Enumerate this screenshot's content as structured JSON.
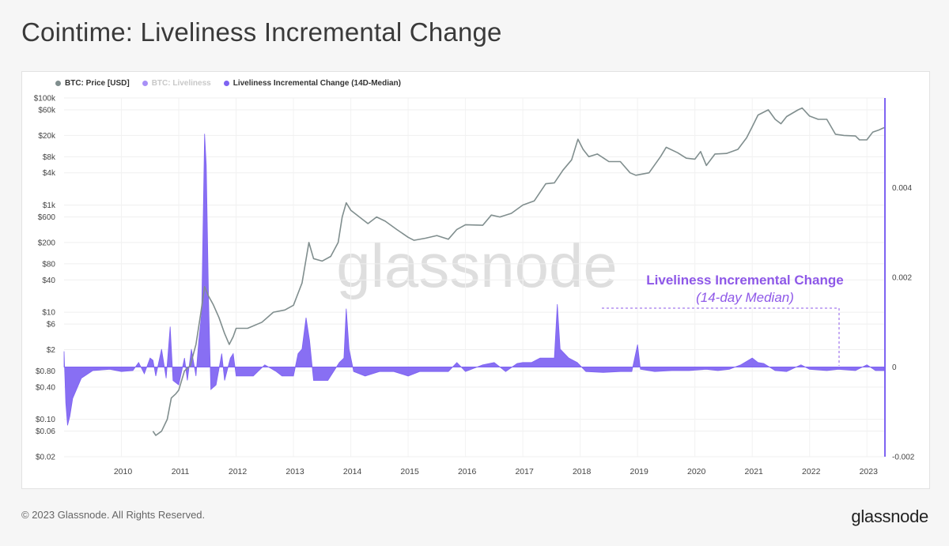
{
  "page": {
    "title": "Cointime: Liveliness Incremental Change",
    "footer": "© 2023 Glassnode. All Rights Reserved.",
    "brand": "glassnode"
  },
  "colors": {
    "price": "#808e8e",
    "liveliness": "#8a6cf0",
    "change": "#7e63f2",
    "annotation": "#8e58e8"
  },
  "chart_data": {
    "type": "line",
    "legend": [
      {
        "label": "BTC: Price [USD]",
        "color": "#808e8e",
        "faded": false
      },
      {
        "label": "BTC: Liveliness",
        "color": "#a890f7",
        "faded": true
      },
      {
        "label": "Liveliness Incremental Change (14D-Median)",
        "color": "#7e63f2",
        "faded": false
      }
    ],
    "watermark": "glassnode",
    "annotation": {
      "title": "Liveliness Incremental Change",
      "subtitle": "(14-day Median)"
    },
    "x_axis": {
      "ticks": [
        "2010",
        "2011",
        "2012",
        "2013",
        "2014",
        "2015",
        "2016",
        "2017",
        "2018",
        "2019",
        "2020",
        "2021",
        "2022",
        "2023"
      ],
      "range": [
        2009.0,
        2023.3
      ]
    },
    "y_left": {
      "scale": "log",
      "ticks": [
        "$100k",
        "$60k",
        "$20k",
        "$8k",
        "$4k",
        "$1k",
        "$600",
        "$200",
        "$80",
        "$40",
        "$10",
        "$6",
        "$2",
        "$0.80",
        "$0.40",
        "$0.10",
        "$0.06",
        "$0.02"
      ],
      "tick_values": [
        100000,
        60000,
        20000,
        8000,
        4000,
        1000,
        600,
        200,
        80,
        40,
        10,
        6,
        2,
        0.8,
        0.4,
        0.1,
        0.06,
        0.02
      ],
      "range": [
        0.02,
        100000
      ]
    },
    "y_right": {
      "scale": "linear",
      "ticks": [
        "0.004",
        "0.002",
        "0",
        "-0.002"
      ],
      "tick_values": [
        0.004,
        0.002,
        0,
        -0.002
      ],
      "range": [
        -0.002,
        0.006
      ]
    },
    "series": [
      {
        "name": "BTC: Price [USD]",
        "axis": "left",
        "points": [
          [
            2010.55,
            0.06
          ],
          [
            2010.6,
            0.05
          ],
          [
            2010.7,
            0.06
          ],
          [
            2010.8,
            0.1
          ],
          [
            2010.87,
            0.25
          ],
          [
            2010.95,
            0.3
          ],
          [
            2011.0,
            0.35
          ],
          [
            2011.1,
            0.8
          ],
          [
            2011.2,
            1.0
          ],
          [
            2011.3,
            2.5
          ],
          [
            2011.38,
            9.0
          ],
          [
            2011.45,
            30.0
          ],
          [
            2011.52,
            20.0
          ],
          [
            2011.6,
            14.0
          ],
          [
            2011.7,
            8.0
          ],
          [
            2011.8,
            4.0
          ],
          [
            2011.88,
            2.5
          ],
          [
            2011.95,
            3.5
          ],
          [
            2012.0,
            5.0
          ],
          [
            2012.2,
            5.0
          ],
          [
            2012.45,
            6.5
          ],
          [
            2012.65,
            10.0
          ],
          [
            2012.85,
            11.0
          ],
          [
            2013.0,
            13.5
          ],
          [
            2013.15,
            35.0
          ],
          [
            2013.27,
            200.0
          ],
          [
            2013.35,
            100.0
          ],
          [
            2013.5,
            90.0
          ],
          [
            2013.65,
            110.0
          ],
          [
            2013.78,
            200.0
          ],
          [
            2013.85,
            600.0
          ],
          [
            2013.92,
            1100.0
          ],
          [
            2014.0,
            800.0
          ],
          [
            2014.15,
            600.0
          ],
          [
            2014.3,
            450.0
          ],
          [
            2014.45,
            600.0
          ],
          [
            2014.6,
            500.0
          ],
          [
            2014.8,
            350.0
          ],
          [
            2015.0,
            250.0
          ],
          [
            2015.1,
            220.0
          ],
          [
            2015.3,
            240.0
          ],
          [
            2015.5,
            270.0
          ],
          [
            2015.7,
            230.0
          ],
          [
            2015.85,
            350.0
          ],
          [
            2016.0,
            430.0
          ],
          [
            2016.3,
            420.0
          ],
          [
            2016.45,
            650.0
          ],
          [
            2016.6,
            600.0
          ],
          [
            2016.8,
            700.0
          ],
          [
            2017.0,
            1000.0
          ],
          [
            2017.2,
            1200.0
          ],
          [
            2017.4,
            2500.0
          ],
          [
            2017.55,
            2600.0
          ],
          [
            2017.7,
            4500.0
          ],
          [
            2017.85,
            7000.0
          ],
          [
            2017.96,
            17000.0
          ],
          [
            2018.05,
            11000.0
          ],
          [
            2018.15,
            8000.0
          ],
          [
            2018.3,
            9000.0
          ],
          [
            2018.5,
            6500.0
          ],
          [
            2018.7,
            6500.0
          ],
          [
            2018.87,
            4000.0
          ],
          [
            2018.97,
            3600.0
          ],
          [
            2019.2,
            4000.0
          ],
          [
            2019.4,
            8000.0
          ],
          [
            2019.5,
            12000.0
          ],
          [
            2019.7,
            9500.0
          ],
          [
            2019.85,
            7500.0
          ],
          [
            2020.0,
            7200.0
          ],
          [
            2020.1,
            10000.0
          ],
          [
            2020.2,
            5500.0
          ],
          [
            2020.35,
            9000.0
          ],
          [
            2020.55,
            9200.0
          ],
          [
            2020.75,
            11000.0
          ],
          [
            2020.9,
            18000.0
          ],
          [
            2021.0,
            29000.0
          ],
          [
            2021.1,
            48000.0
          ],
          [
            2021.28,
            60000.0
          ],
          [
            2021.4,
            40000.0
          ],
          [
            2021.5,
            33000.0
          ],
          [
            2021.6,
            45000.0
          ],
          [
            2021.8,
            60000.0
          ],
          [
            2021.87,
            65000.0
          ],
          [
            2022.0,
            46000.0
          ],
          [
            2022.15,
            40000.0
          ],
          [
            2022.3,
            40000.0
          ],
          [
            2022.45,
            21000.0
          ],
          [
            2022.6,
            20000.0
          ],
          [
            2022.8,
            19500.0
          ],
          [
            2022.87,
            16500.0
          ],
          [
            2023.0,
            16600.0
          ],
          [
            2023.1,
            23000.0
          ],
          [
            2023.2,
            25000.0
          ],
          [
            2023.3,
            28000.0
          ]
        ]
      },
      {
        "name": "Liveliness Incremental Change (14D-Median)",
        "axis": "right",
        "points": [
          [
            2009.0,
            0.00035
          ],
          [
            2009.03,
            -0.0008
          ],
          [
            2009.06,
            -0.0013
          ],
          [
            2009.1,
            -0.0011
          ],
          [
            2009.15,
            -0.0007
          ],
          [
            2009.3,
            -0.00025
          ],
          [
            2009.5,
            -8e-05
          ],
          [
            2009.8,
            -5e-05
          ],
          [
            2010.0,
            -0.0001
          ],
          [
            2010.2,
            -8e-05
          ],
          [
            2010.3,
            0.0001
          ],
          [
            2010.4,
            -0.00015
          ],
          [
            2010.5,
            0.0002
          ],
          [
            2010.55,
            0.00015
          ],
          [
            2010.6,
            -0.0002
          ],
          [
            2010.7,
            0.0004
          ],
          [
            2010.78,
            -0.00025
          ],
          [
            2010.85,
            0.0009
          ],
          [
            2010.9,
            -0.0003
          ],
          [
            2011.0,
            -0.0004
          ],
          [
            2011.1,
            0.0002
          ],
          [
            2011.15,
            -0.0003
          ],
          [
            2011.22,
            0.0004
          ],
          [
            2011.3,
            -0.0002
          ],
          [
            2011.35,
            0.0006
          ],
          [
            2011.4,
            0.0012
          ],
          [
            2011.45,
            0.0052
          ],
          [
            2011.48,
            0.0045
          ],
          [
            2011.52,
            0.0015
          ],
          [
            2011.56,
            -0.0005
          ],
          [
            2011.65,
            -0.0004
          ],
          [
            2011.75,
            0.0003
          ],
          [
            2011.8,
            -0.0003
          ],
          [
            2011.9,
            0.0002
          ],
          [
            2011.95,
            0.0003
          ],
          [
            2012.0,
            -0.0002
          ],
          [
            2012.3,
            -0.0002
          ],
          [
            2012.5,
            5e-05
          ],
          [
            2012.7,
            -0.0001
          ],
          [
            2012.8,
            -0.0002
          ],
          [
            2013.0,
            -0.0002
          ],
          [
            2013.08,
            0.0003
          ],
          [
            2013.15,
            0.0004
          ],
          [
            2013.22,
            0.0011
          ],
          [
            2013.28,
            0.0006
          ],
          [
            2013.35,
            -0.0003
          ],
          [
            2013.6,
            -0.0003
          ],
          [
            2013.8,
            0.0001
          ],
          [
            2013.88,
            0.0002
          ],
          [
            2013.92,
            0.0013
          ],
          [
            2013.97,
            0.0004
          ],
          [
            2014.05,
            -0.0001
          ],
          [
            2014.25,
            -0.0002
          ],
          [
            2014.5,
            -0.0001
          ],
          [
            2014.75,
            -0.0001
          ],
          [
            2015.0,
            -0.0002
          ],
          [
            2015.2,
            -0.0001
          ],
          [
            2015.5,
            -0.0001
          ],
          [
            2015.7,
            -0.0001
          ],
          [
            2015.85,
            0.0001
          ],
          [
            2016.0,
            -0.0001
          ],
          [
            2016.3,
            5e-05
          ],
          [
            2016.5,
            0.0001
          ],
          [
            2016.7,
            -0.0001
          ],
          [
            2016.9,
            8e-05
          ],
          [
            2017.0,
            0.0001
          ],
          [
            2017.15,
            0.0001
          ],
          [
            2017.3,
            0.0002
          ],
          [
            2017.45,
            0.0002
          ],
          [
            2017.55,
            0.0002
          ],
          [
            2017.6,
            0.0014
          ],
          [
            2017.65,
            0.0004
          ],
          [
            2017.8,
            0.0002
          ],
          [
            2017.95,
            0.0001
          ],
          [
            2018.1,
            -0.0001
          ],
          [
            2018.4,
            -0.00012
          ],
          [
            2018.7,
            -0.0001
          ],
          [
            2018.9,
            -0.0001
          ],
          [
            2019.0,
            0.0005
          ],
          [
            2019.05,
            -5e-05
          ],
          [
            2019.3,
            -0.0001
          ],
          [
            2019.6,
            -8e-05
          ],
          [
            2019.9,
            -8e-05
          ],
          [
            2020.2,
            -5e-05
          ],
          [
            2020.4,
            -8e-05
          ],
          [
            2020.6,
            -5e-05
          ],
          [
            2020.8,
            5e-05
          ],
          [
            2021.0,
            0.0002
          ],
          [
            2021.1,
            0.0001
          ],
          [
            2021.2,
            8e-05
          ],
          [
            2021.4,
            -8e-05
          ],
          [
            2021.6,
            -0.0001
          ],
          [
            2021.85,
            5e-05
          ],
          [
            2022.0,
            -5e-05
          ],
          [
            2022.3,
            -8e-05
          ],
          [
            2022.5,
            -5e-05
          ],
          [
            2022.8,
            -8e-05
          ],
          [
            2023.0,
            5e-05
          ],
          [
            2023.15,
            -8e-05
          ],
          [
            2023.3,
            -8e-05
          ]
        ]
      }
    ]
  }
}
